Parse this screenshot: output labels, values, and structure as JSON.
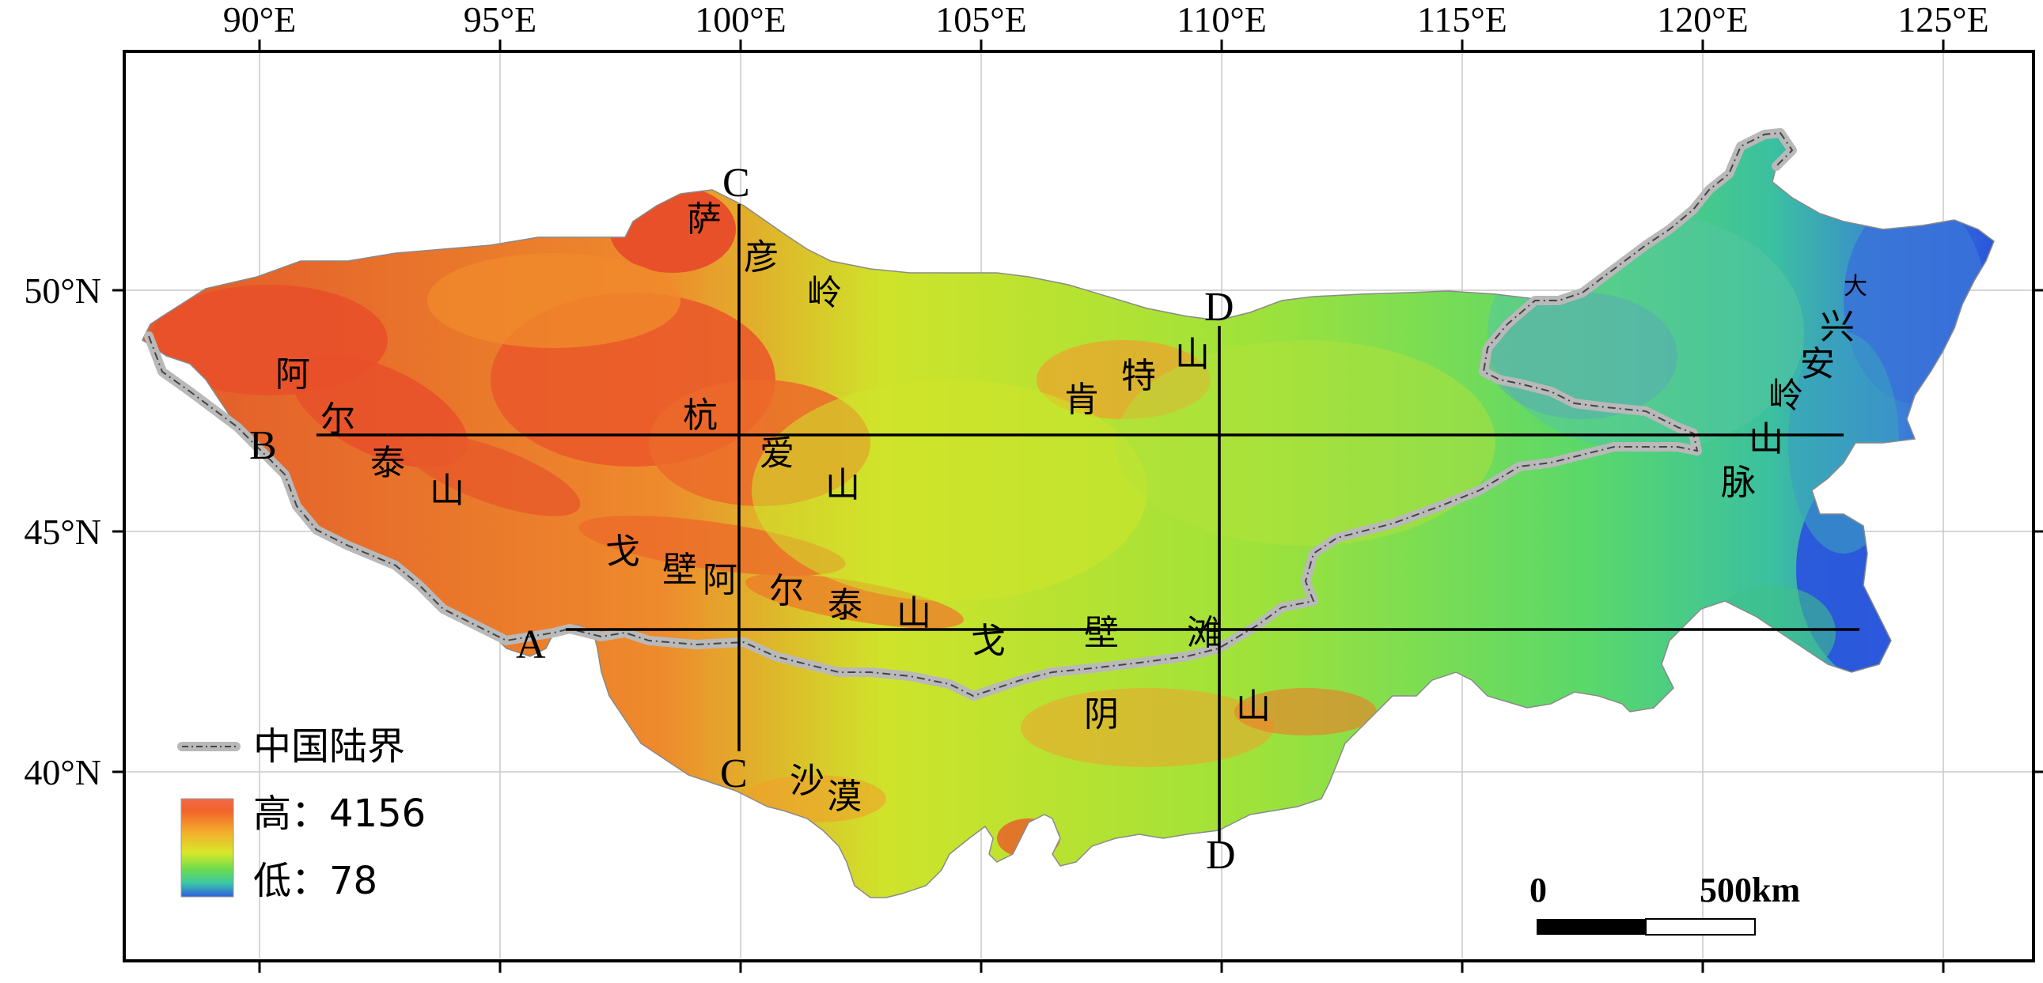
{
  "map": {
    "lon_labels": [
      "90°E",
      "95°E",
      "100°E",
      "105°E",
      "110°E",
      "115°E",
      "120°E",
      "125°E"
    ],
    "lat_labels": [
      "50°N",
      "45°N",
      "40°N"
    ],
    "section_labels": {
      "a": "A",
      "b": "B",
      "c_top": "C",
      "c_bottom": "C",
      "d_top": "D",
      "d_bottom": "D"
    },
    "regions": {
      "sayan": [
        "萨",
        "彦",
        "岭"
      ],
      "altai": [
        "阿",
        "尔",
        "泰",
        "山"
      ],
      "hangai": [
        "杭",
        "爱",
        "山"
      ],
      "khentii": [
        "肯",
        "特",
        "山"
      ],
      "gobi_altai": [
        "戈",
        "壁",
        "阿",
        "尔",
        "泰",
        "山"
      ],
      "gobi": [
        "戈",
        "壁",
        "滩"
      ],
      "yinshan": [
        "阴",
        "山"
      ],
      "desert": [
        "沙",
        "漠"
      ],
      "khingan": [
        "大",
        "兴",
        "安",
        "岭",
        "山",
        "脉"
      ]
    },
    "legend": {
      "border_label": "中国陆界",
      "high_label": "高：4156",
      "low_label": "低：78"
    },
    "scale_bar": {
      "zero_label": "0",
      "distance_label": "500km"
    },
    "colors": {
      "high": "#e8502a",
      "mid_high": "#f3a22a",
      "mid": "#dde622",
      "mid_low": "#7fd83a",
      "low_green": "#35cf6e",
      "teal": "#52b5b0",
      "low": "#2a5fdc",
      "border": "#b9b9b9"
    }
  }
}
